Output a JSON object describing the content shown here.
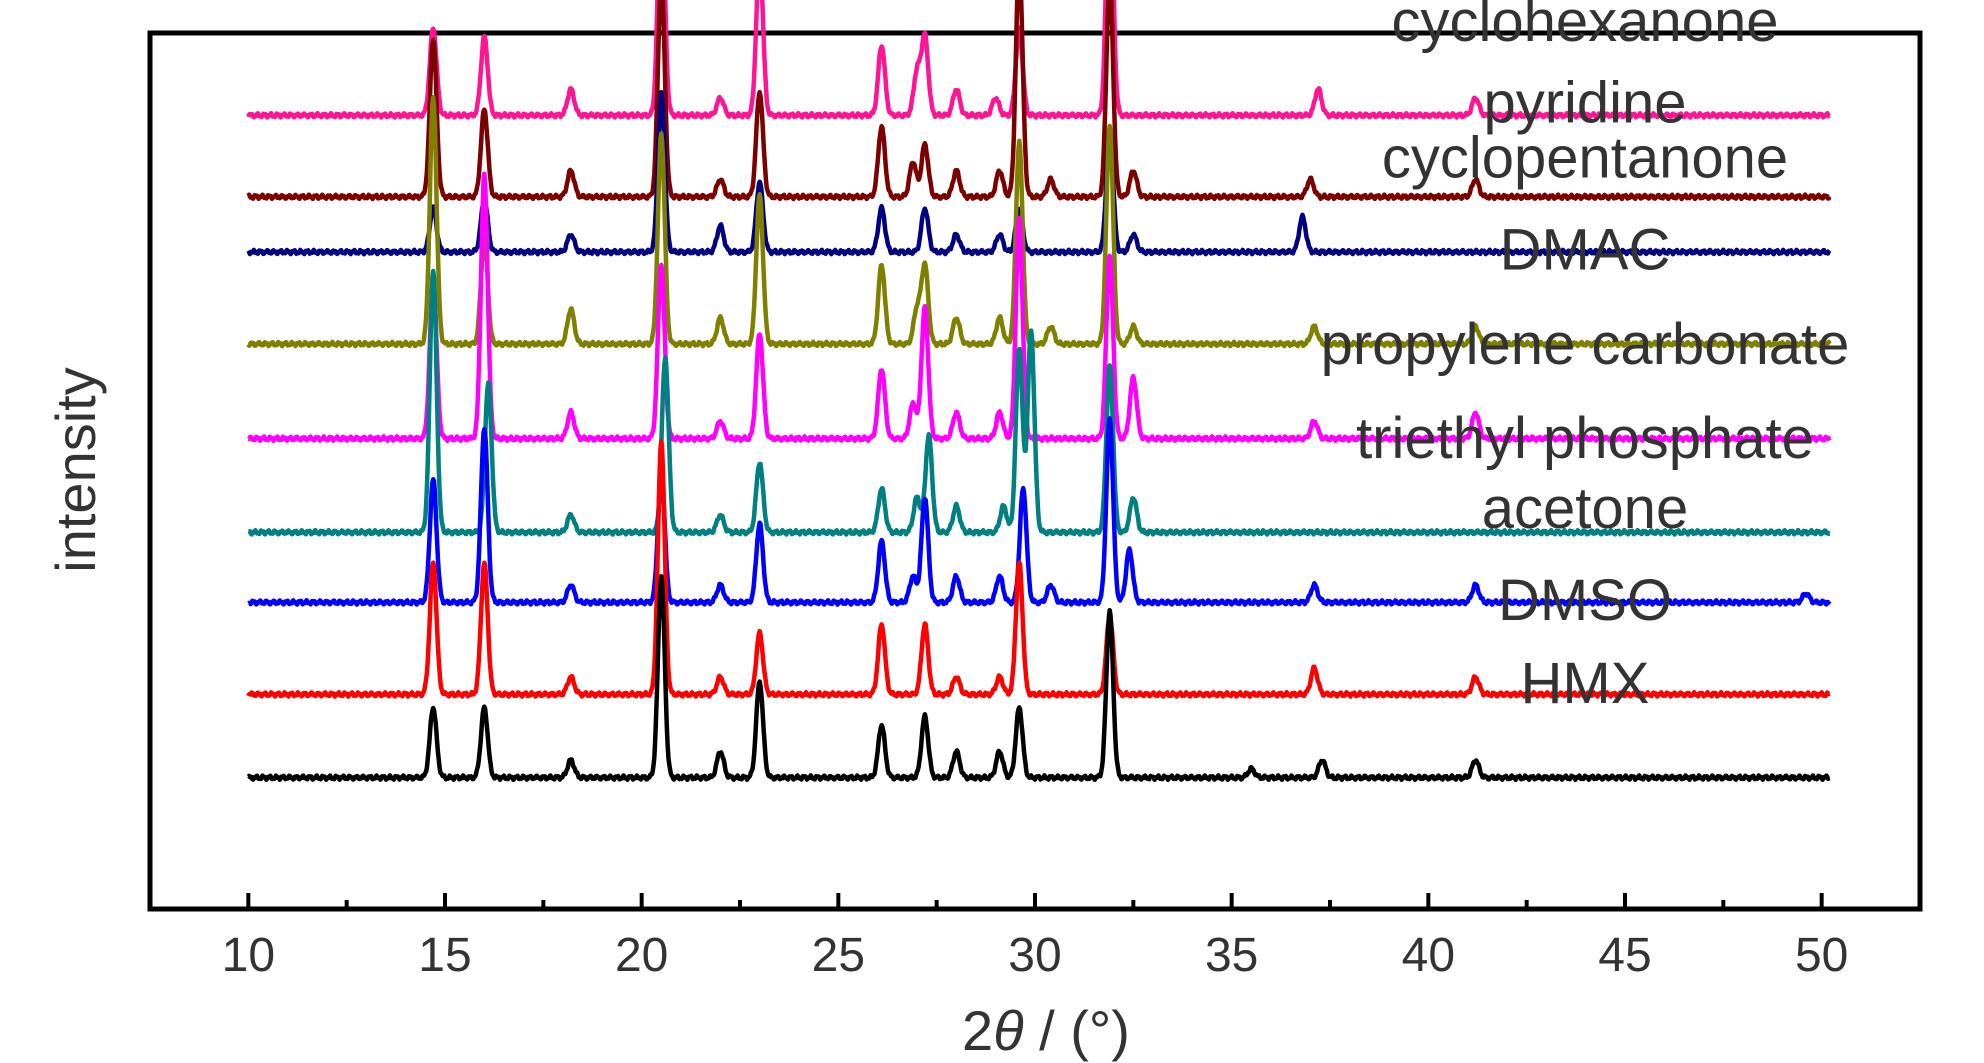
{
  "chart_data": {
    "type": "line",
    "title": "",
    "xlabel_prefix": "2",
    "xlabel_var": "θ",
    "xlabel_suffix": " / (°)",
    "ylabel": "intensity",
    "xlim": [
      7.5,
      52.5
    ],
    "xticks": [
      10,
      15,
      20,
      25,
      30,
      35,
      40,
      45,
      50
    ],
    "minor_xticks": [
      12.5,
      17.5,
      22.5,
      27.5,
      32.5,
      37.5,
      42.5,
      47.5
    ],
    "x_start": 10,
    "x_end": 50.2,
    "y_ticks_shown": false,
    "grid": false,
    "legend": "none (labels placed directly above each trace)",
    "series": [
      {
        "name": "cyclohexanone",
        "color": "#ff1493",
        "baseline_level": 0.906,
        "peaks": [
          [
            14.7,
            0.1
          ],
          [
            16.0,
            0.09
          ],
          [
            18.2,
            0.03
          ],
          [
            20.5,
            0.26
          ],
          [
            22.0,
            0.02
          ],
          [
            23.0,
            0.18
          ],
          [
            26.1,
            0.08
          ],
          [
            27.0,
            0.05
          ],
          [
            27.2,
            0.09
          ],
          [
            28.0,
            0.03
          ],
          [
            29.0,
            0.02
          ],
          [
            29.6,
            0.1
          ],
          [
            31.9,
            0.29
          ],
          [
            37.2,
            0.03
          ],
          [
            41.2,
            0.02
          ]
        ]
      },
      {
        "name": "pyridine",
        "color": "#7b0000",
        "baseline_level": 0.813,
        "peaks": [
          [
            14.7,
            0.18
          ],
          [
            16.0,
            0.1
          ],
          [
            18.2,
            0.03
          ],
          [
            20.5,
            0.25
          ],
          [
            22.0,
            0.02
          ],
          [
            23.0,
            0.12
          ],
          [
            26.1,
            0.08
          ],
          [
            26.9,
            0.04
          ],
          [
            27.2,
            0.06
          ],
          [
            28.0,
            0.03
          ],
          [
            29.1,
            0.03
          ],
          [
            29.6,
            0.27
          ],
          [
            30.4,
            0.02
          ],
          [
            31.9,
            0.25
          ],
          [
            32.5,
            0.03
          ],
          [
            37.0,
            0.02
          ],
          [
            41.2,
            0.02
          ]
        ]
      },
      {
        "name": "cyclopentanone",
        "color": "#000080",
        "baseline_level": 0.75,
        "peaks": [
          [
            14.7,
            0.05
          ],
          [
            16.0,
            0.06
          ],
          [
            18.2,
            0.02
          ],
          [
            20.5,
            0.18
          ],
          [
            22.0,
            0.03
          ],
          [
            23.0,
            0.08
          ],
          [
            26.1,
            0.05
          ],
          [
            27.2,
            0.05
          ],
          [
            28.0,
            0.02
          ],
          [
            29.1,
            0.02
          ],
          [
            29.6,
            0.05
          ],
          [
            31.9,
            0.14
          ],
          [
            32.5,
            0.02
          ],
          [
            36.8,
            0.04
          ]
        ]
      },
      {
        "name": "DMAC",
        "color": "#808000",
        "baseline_level": 0.645,
        "peaks": [
          [
            14.7,
            0.28
          ],
          [
            16.0,
            0.12
          ],
          [
            18.2,
            0.04
          ],
          [
            20.5,
            0.24
          ],
          [
            22.0,
            0.03
          ],
          [
            23.0,
            0.17
          ],
          [
            26.1,
            0.09
          ],
          [
            27.0,
            0.04
          ],
          [
            27.2,
            0.09
          ],
          [
            28.0,
            0.03
          ],
          [
            29.1,
            0.03
          ],
          [
            29.6,
            0.23
          ],
          [
            30.4,
            0.02
          ],
          [
            31.9,
            0.25
          ],
          [
            32.5,
            0.02
          ],
          [
            37.1,
            0.02
          ],
          [
            41.2,
            0.02
          ]
        ]
      },
      {
        "name": "propylene carbonate",
        "color": "#ff00ff",
        "baseline_level": 0.537,
        "peaks": [
          [
            14.7,
            0.18
          ],
          [
            16.0,
            0.3
          ],
          [
            18.2,
            0.03
          ],
          [
            20.5,
            0.2
          ],
          [
            22.0,
            0.02
          ],
          [
            23.0,
            0.12
          ],
          [
            26.1,
            0.08
          ],
          [
            26.9,
            0.04
          ],
          [
            27.2,
            0.15
          ],
          [
            28.0,
            0.03
          ],
          [
            29.1,
            0.03
          ],
          [
            29.6,
            0.25
          ],
          [
            31.9,
            0.21
          ],
          [
            32.5,
            0.07
          ],
          [
            37.1,
            0.02
          ],
          [
            41.2,
            0.03
          ]
        ]
      },
      {
        "name": "triethyl phosphate",
        "color": "#008080",
        "baseline_level": 0.43,
        "peaks": [
          [
            14.7,
            0.3
          ],
          [
            16.1,
            0.17
          ],
          [
            18.2,
            0.02
          ],
          [
            20.6,
            0.2
          ],
          [
            22.0,
            0.02
          ],
          [
            23.0,
            0.08
          ],
          [
            26.1,
            0.05
          ],
          [
            27.0,
            0.04
          ],
          [
            27.3,
            0.11
          ],
          [
            28.0,
            0.03
          ],
          [
            29.2,
            0.03
          ],
          [
            29.6,
            0.21
          ],
          [
            29.9,
            0.23
          ],
          [
            31.9,
            0.19
          ],
          [
            32.5,
            0.04
          ]
        ]
      },
      {
        "name": "acetone",
        "color": "#0000ff",
        "baseline_level": 0.35,
        "peaks": [
          [
            14.7,
            0.14
          ],
          [
            16.0,
            0.2
          ],
          [
            18.2,
            0.02
          ],
          [
            20.5,
            0.15
          ],
          [
            22.0,
            0.02
          ],
          [
            23.0,
            0.09
          ],
          [
            26.1,
            0.07
          ],
          [
            26.9,
            0.03
          ],
          [
            27.2,
            0.12
          ],
          [
            28.0,
            0.03
          ],
          [
            29.1,
            0.03
          ],
          [
            29.7,
            0.13
          ],
          [
            30.4,
            0.02
          ],
          [
            31.9,
            0.21
          ],
          [
            32.4,
            0.06
          ],
          [
            37.1,
            0.02
          ],
          [
            41.2,
            0.02
          ],
          [
            49.6,
            0.01
          ]
        ]
      },
      {
        "name": "DMSO",
        "color": "#ff0000",
        "baseline_level": 0.245,
        "peaks": [
          [
            14.7,
            0.15
          ],
          [
            16.0,
            0.15
          ],
          [
            18.2,
            0.02
          ],
          [
            20.5,
            0.29
          ],
          [
            22.0,
            0.02
          ],
          [
            23.0,
            0.07
          ],
          [
            26.1,
            0.08
          ],
          [
            27.2,
            0.08
          ],
          [
            28.0,
            0.02
          ],
          [
            29.1,
            0.02
          ],
          [
            29.6,
            0.15
          ],
          [
            31.9,
            0.09
          ],
          [
            37.1,
            0.03
          ],
          [
            41.2,
            0.02
          ]
        ]
      },
      {
        "name": "HMX",
        "color": "#000000",
        "baseline_level": 0.15,
        "peaks": [
          [
            14.7,
            0.08
          ],
          [
            16.0,
            0.08
          ],
          [
            18.2,
            0.02
          ],
          [
            20.5,
            0.23
          ],
          [
            22.0,
            0.03
          ],
          [
            23.0,
            0.11
          ],
          [
            26.1,
            0.06
          ],
          [
            27.2,
            0.07
          ],
          [
            28.0,
            0.03
          ],
          [
            29.1,
            0.03
          ],
          [
            29.6,
            0.08
          ],
          [
            31.9,
            0.19
          ],
          [
            35.5,
            0.01
          ],
          [
            37.3,
            0.02
          ],
          [
            41.2,
            0.02
          ]
        ]
      }
    ]
  }
}
